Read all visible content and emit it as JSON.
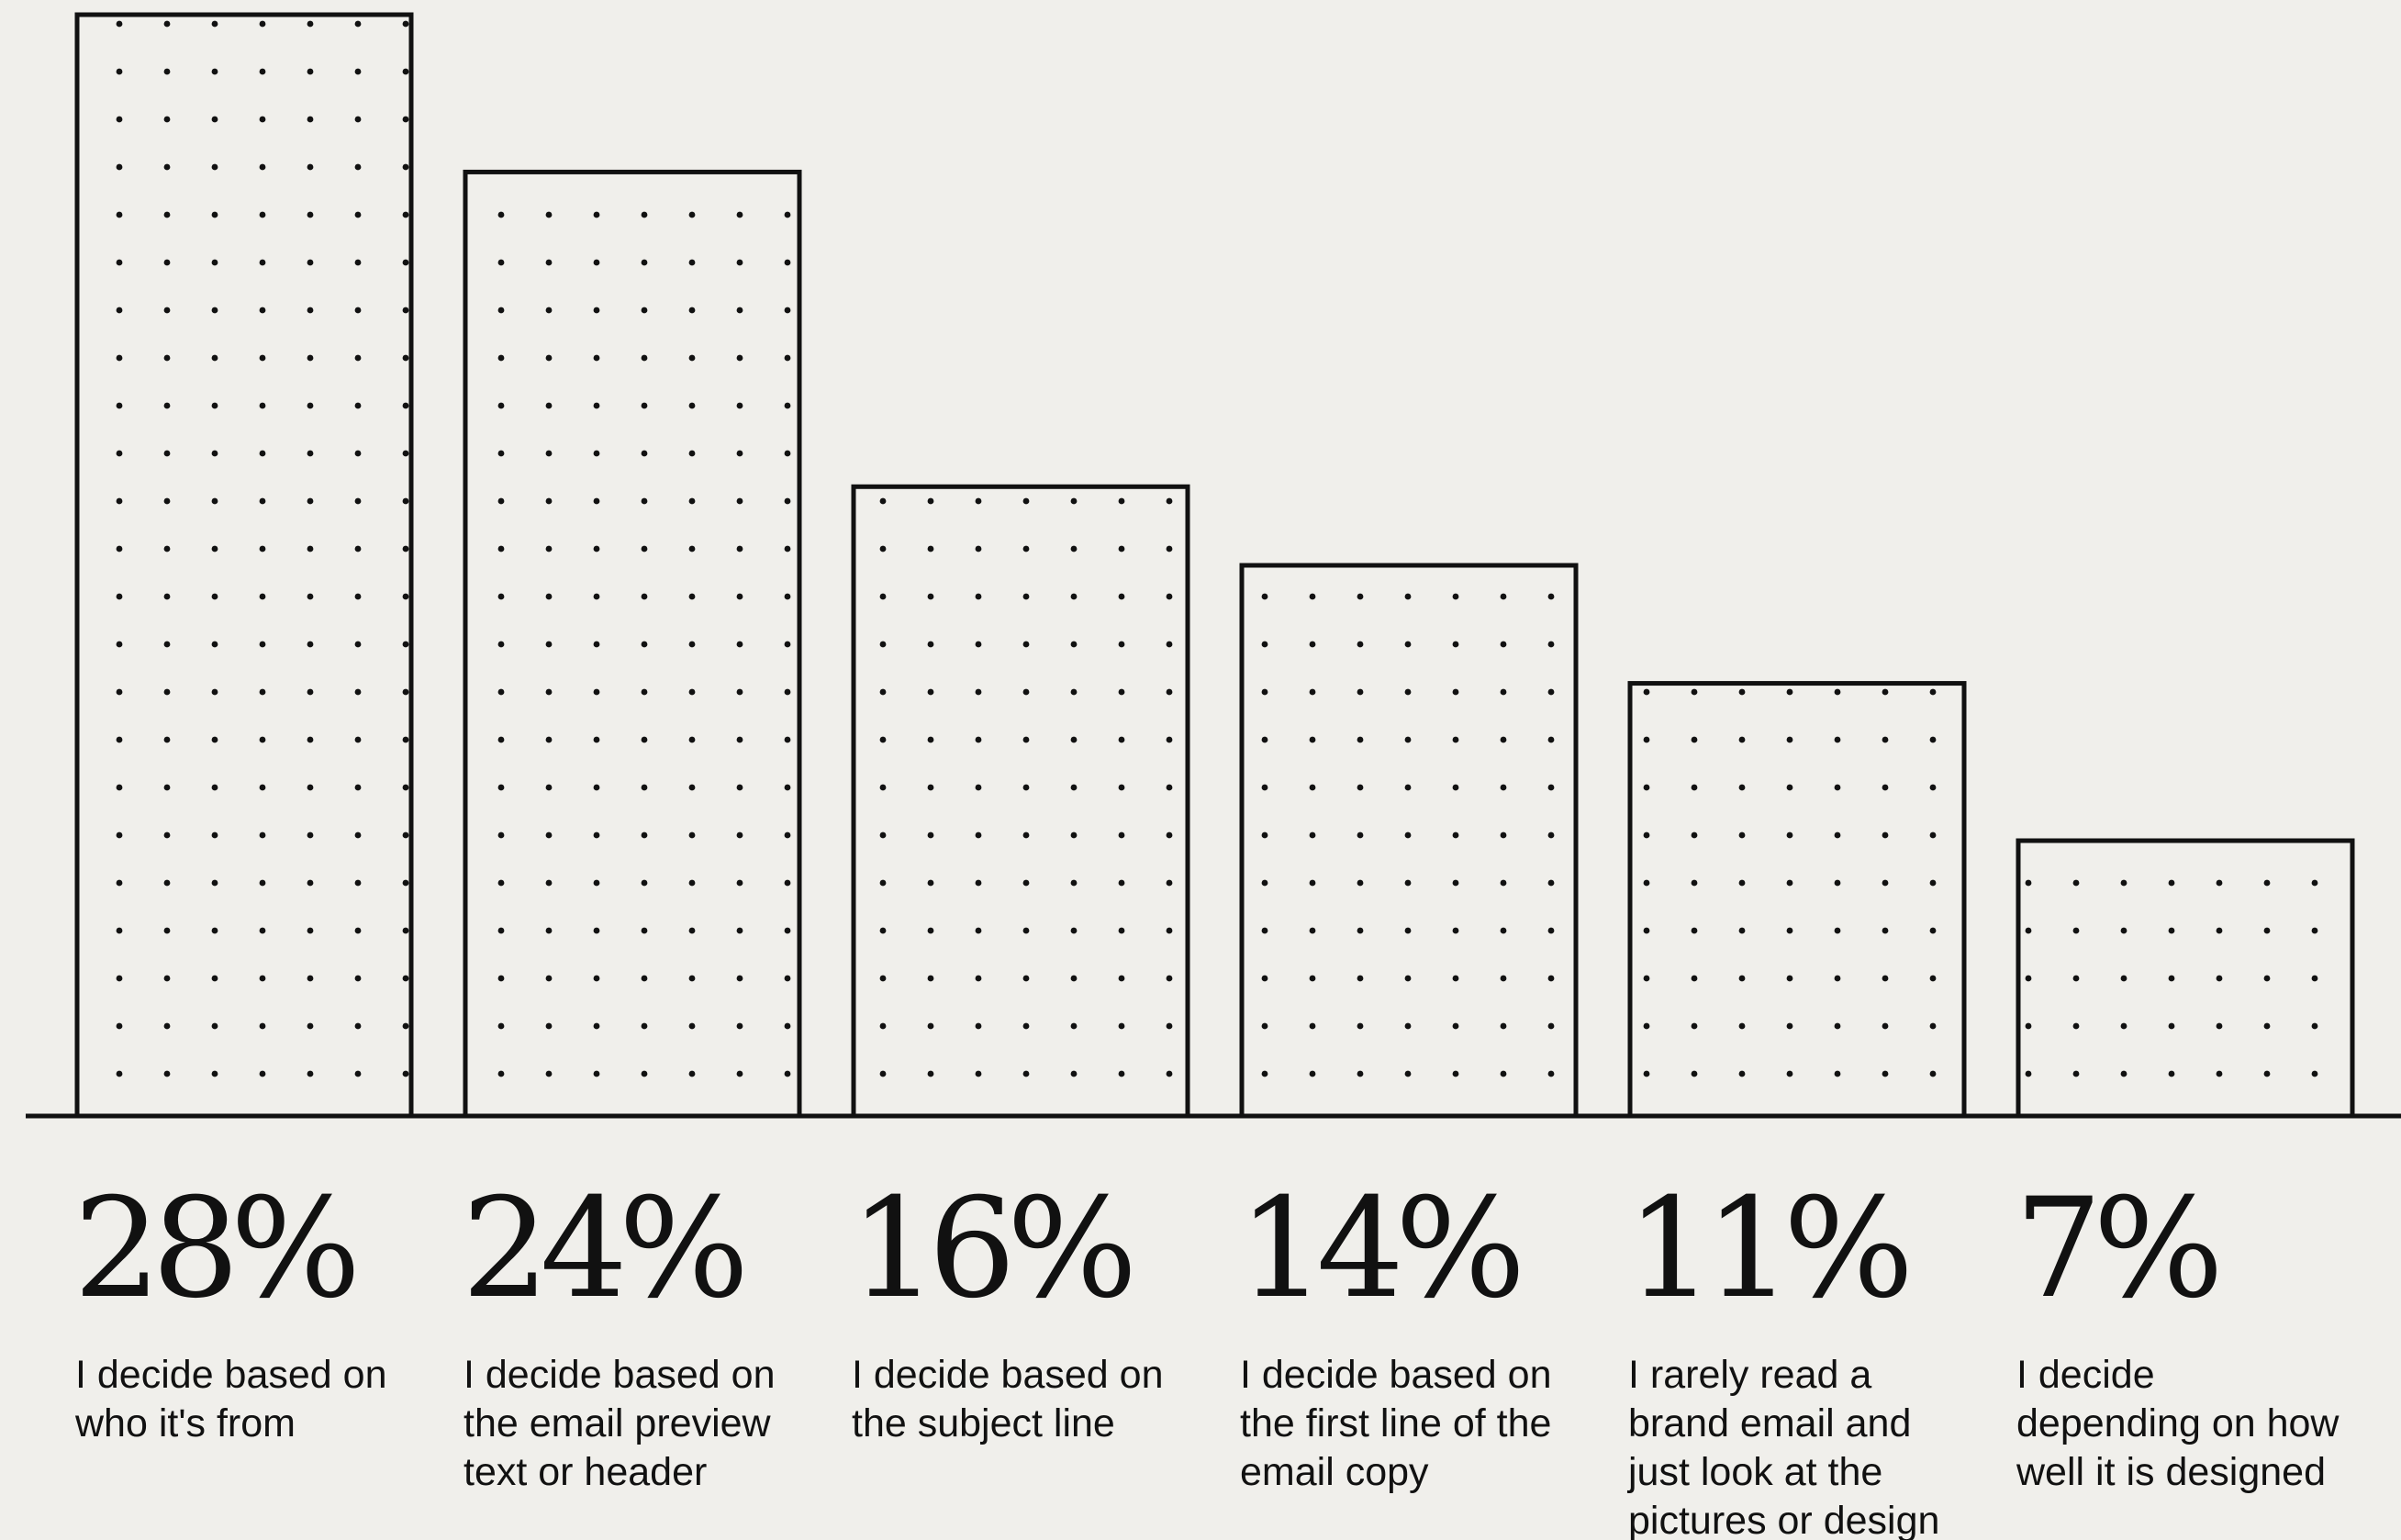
{
  "chart_data": {
    "type": "bar",
    "categories": [
      [
        "I decide based on",
        "who it's from"
      ],
      [
        "I decide based on",
        "the email preview",
        "text or header"
      ],
      [
        "I decide based on",
        "the subject line"
      ],
      [
        "I decide based on",
        "the first line of the",
        "email copy"
      ],
      [
        "I rarely read a",
        "brand email and",
        "just look at the",
        "pictures or design"
      ],
      [
        "I decide",
        "depending on how",
        "well it is designed"
      ]
    ],
    "values": [
      28,
      24,
      16,
      14,
      11,
      7
    ],
    "value_labels": [
      "28%",
      "24%",
      "16%",
      "14%",
      "11%",
      "7%"
    ],
    "ylim": [
      0,
      28
    ],
    "grid": false,
    "legend": "none",
    "title": "",
    "xlabel": "",
    "ylabel": "",
    "colors": {
      "background": "#f0efeb",
      "stroke": "#111111",
      "dot": "#111111"
    }
  }
}
